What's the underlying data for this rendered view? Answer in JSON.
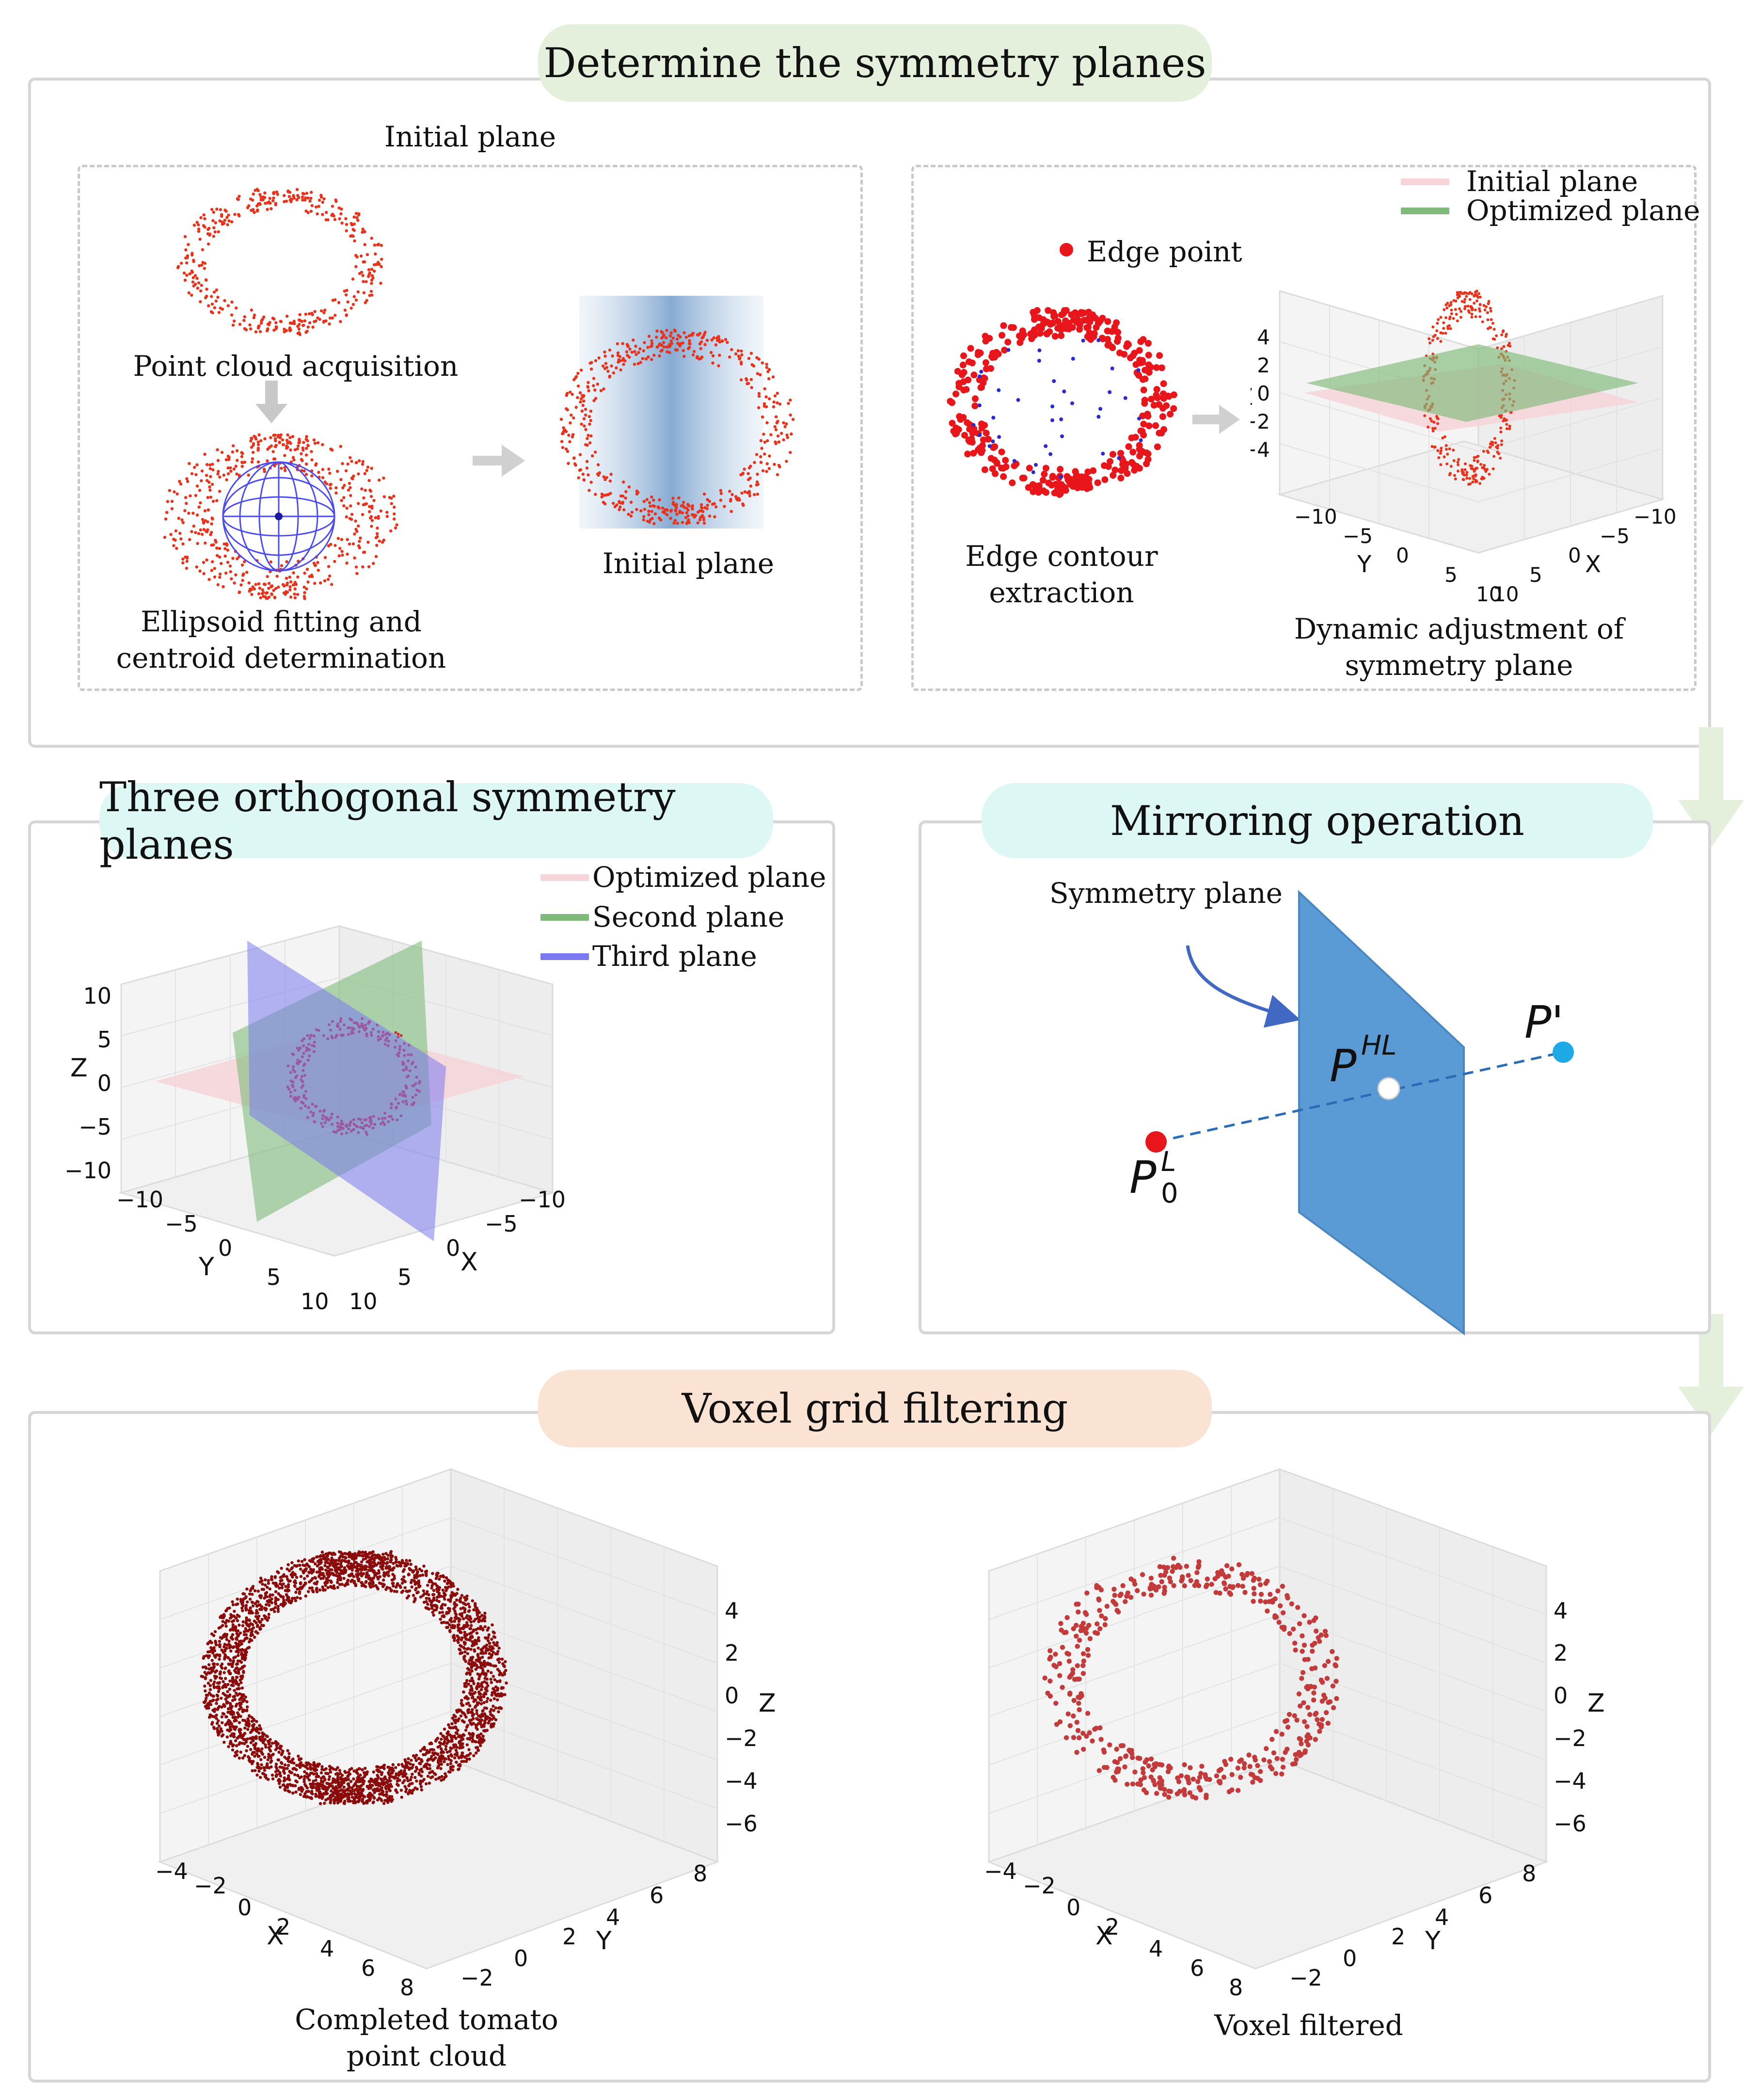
{
  "sections": {
    "symmetry": {
      "title": "Determine the symmetry planes",
      "bg": "#e4efdc"
    },
    "orthogonal": {
      "title": "Three orthogonal symmetry planes",
      "bg": "#dcf7f4"
    },
    "mirroring": {
      "title": "Mirroring operation",
      "bg": "#dcf7f4"
    },
    "voxel": {
      "title": "Voxel grid filtering",
      "bg": "#fae3d3"
    }
  },
  "symmetry_panel": {
    "group_title": "Initial plane",
    "step1": "Point cloud acquisition",
    "step2": "Ellipsoid fitting and\ncentroid determination",
    "step3": "Initial plane",
    "edge_legend": "Edge point",
    "step4": "Edge contour\nextraction",
    "step5": "Dynamic adjustment of\nsymmetry plane",
    "legend": [
      {
        "label": "Initial plane",
        "color": "#f6d4d8"
      },
      {
        "label": "Optimized plane",
        "color": "#7fba7a"
      }
    ],
    "axes": {
      "z_label": "Z",
      "x_label": "X",
      "y_label": "Y",
      "z_ticks": [
        "4",
        "2",
        "0",
        "−2",
        "−4"
      ],
      "x_ticks": [
        "−10",
        "−5",
        "0",
        "5",
        "10"
      ],
      "y_ticks": [
        "−10",
        "−5",
        "0",
        "5",
        "10"
      ]
    }
  },
  "orthogonal_panel": {
    "legend": [
      {
        "label": "Optimized plane",
        "color": "#f6d4d8"
      },
      {
        "label": "Second plane",
        "color": "#7fba7a"
      },
      {
        "label": "Third plane",
        "color": "#7a7af0"
      }
    ],
    "axes": {
      "z_label": "Z",
      "x_label": "X",
      "y_label": "Y",
      "z_ticks": [
        "10",
        "5",
        "0",
        "−5",
        "−10"
      ],
      "x_ticks": [
        "−10",
        "−5",
        "0",
        "5",
        "10"
      ],
      "y_ticks": [
        "−10",
        "−5",
        "0",
        "5",
        "10"
      ]
    }
  },
  "mirror_panel": {
    "plane_label": "Symmetry plane",
    "p_prime": "P'",
    "p_hl_main": "P",
    "p_hl_sup": "HL",
    "p0_main": "P",
    "p0_sup": "L",
    "p0_sub": "0",
    "colors": {
      "plane": "#5b9bd5",
      "p0": "#e8161b",
      "p_prime": "#1ca9e6",
      "line": "#3a7cc4"
    }
  },
  "voxel_panel": {
    "left_caption": "Completed tomato\npoint cloud",
    "right_caption": "Voxel filtered",
    "axes": {
      "z_label": "Z",
      "x_label": "X",
      "y_label": "Y",
      "z_ticks": [
        "4",
        "2",
        "0",
        "−2",
        "−4",
        "−6"
      ],
      "x_ticks": [
        "−4",
        "−2",
        "0",
        "2",
        "4",
        "6",
        "8"
      ],
      "y_ticks": [
        "−2",
        "0",
        "2",
        "4",
        "6",
        "8"
      ]
    },
    "colors": {
      "dense": "#8b0a0a",
      "filtered": "#c23a3a"
    }
  }
}
